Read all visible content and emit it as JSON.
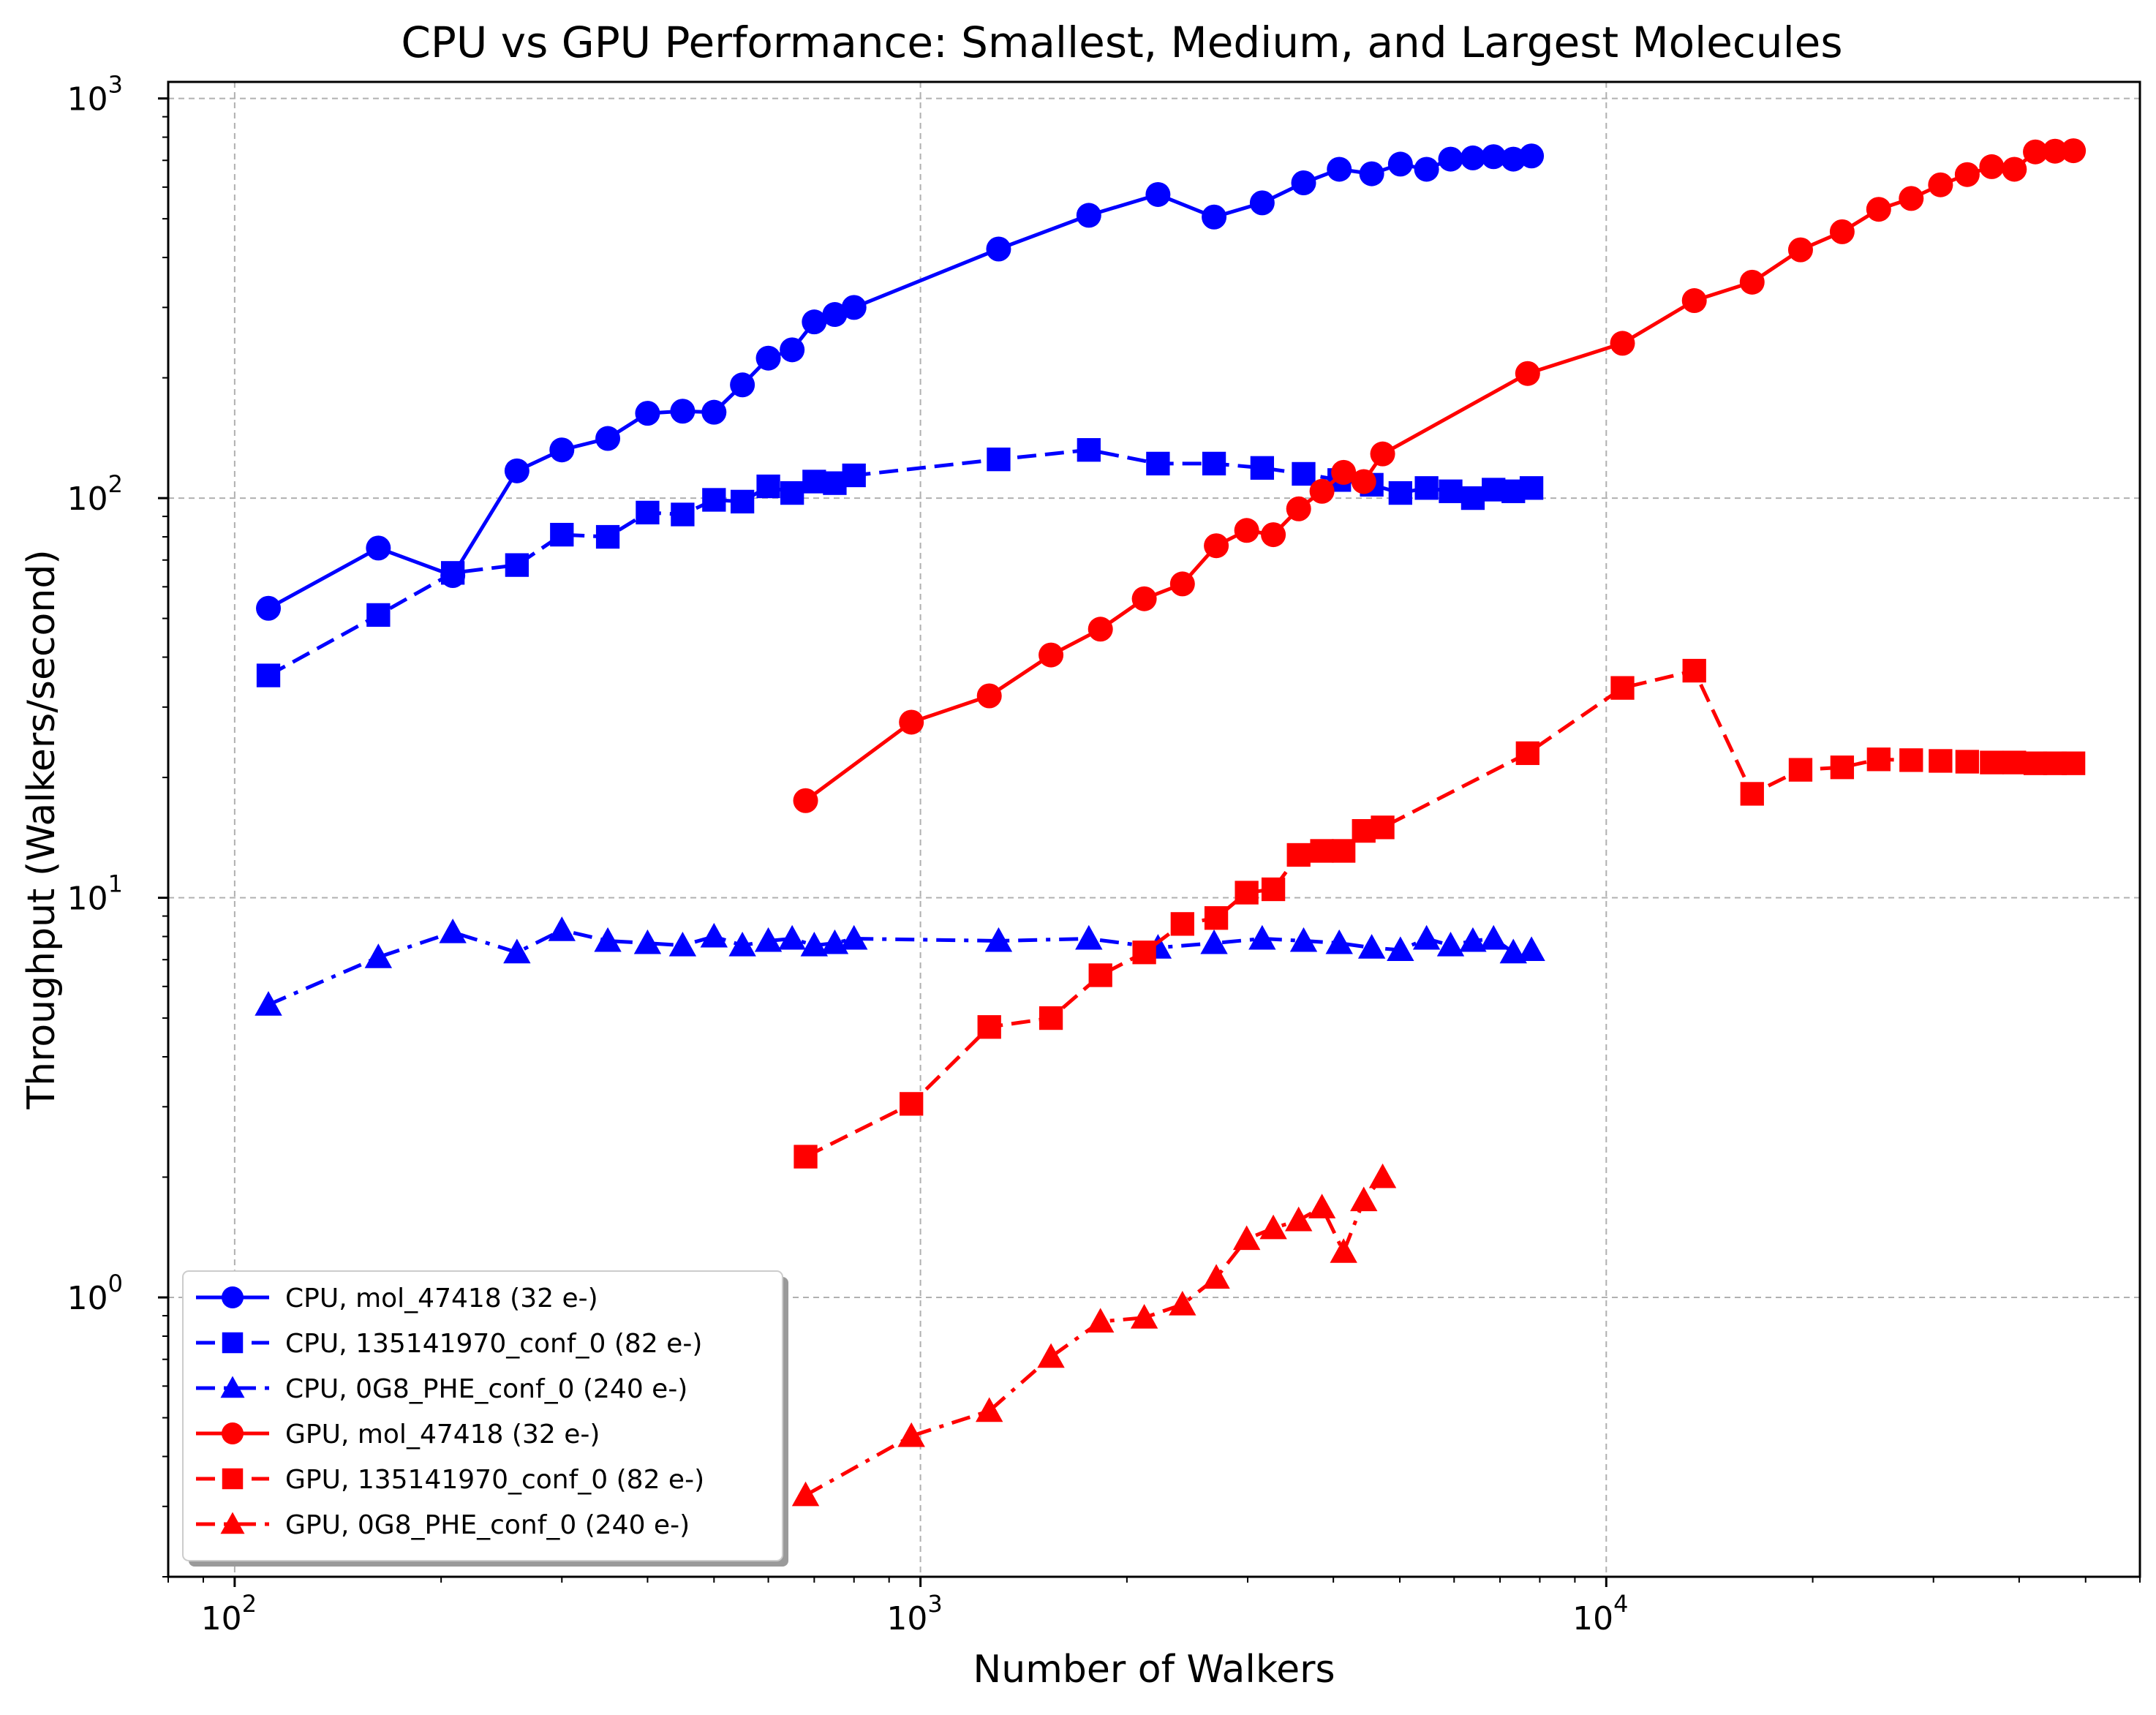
{
  "chart_data": {
    "type": "line",
    "title": "CPU vs GPU Performance: Smallest, Medium, and Largest Molecules",
    "xlabel": "Number of Walkers",
    "ylabel": "Throughput (Walkers/second)",
    "xscale": "log",
    "yscale": "log",
    "xlim": [
      80,
      60000
    ],
    "ylim": [
      0.2,
      1100
    ],
    "grid": true,
    "legend_position": "lower-left",
    "x_tick_labels": [
      {
        "value": 100,
        "base": "10",
        "exp": "2"
      },
      {
        "value": 1000,
        "base": "10",
        "exp": "3"
      },
      {
        "value": 10000,
        "base": "10",
        "exp": "4"
      }
    ],
    "y_tick_labels": [
      {
        "value": 1,
        "base": "10",
        "exp": "0"
      },
      {
        "value": 10,
        "base": "10",
        "exp": "1"
      },
      {
        "value": 100,
        "base": "10",
        "exp": "2"
      },
      {
        "value": 1000,
        "base": "10",
        "exp": "3"
      }
    ],
    "series": [
      {
        "name": "CPU, mol_47418 (32 e-)",
        "color": "#0000ff",
        "marker": "circle",
        "linestyle": "solid",
        "x": [
          112,
          162,
          208,
          258,
          300,
          350,
          400,
          450,
          500,
          550,
          600,
          650,
          700,
          750,
          800,
          1300,
          1760,
          2220,
          2680,
          3150,
          3620,
          4080,
          4550,
          5010,
          5470,
          5930,
          6390,
          6850,
          7320,
          7780
        ],
        "y": [
          53,
          75,
          64,
          117,
          132,
          141,
          163,
          165,
          164,
          192,
          224,
          235,
          276,
          288,
          300,
          420,
          510,
          575,
          505,
          548,
          615,
          665,
          648,
          685,
          665,
          705,
          710,
          715,
          705,
          718
        ]
      },
      {
        "name": "CPU, 135141970_conf_0 (82 e-)",
        "color": "#0000ff",
        "marker": "square",
        "linestyle": "dashed",
        "x": [
          112,
          162,
          208,
          258,
          300,
          350,
          400,
          450,
          500,
          550,
          600,
          650,
          700,
          750,
          800,
          1300,
          1760,
          2220,
          2680,
          3150,
          3620,
          4080,
          4550,
          5010,
          5470,
          5930,
          6390,
          6850,
          7320,
          7780
        ],
        "y": [
          36,
          51,
          65,
          68,
          81,
          80,
          92,
          91,
          99,
          98,
          107,
          103,
          110,
          109,
          114,
          125,
          132,
          122,
          122,
          119,
          115,
          111,
          108,
          103,
          106,
          104,
          100,
          105,
          104,
          106
        ]
      },
      {
        "name": "CPU, 0G8_PHE_conf_0 (240 e-)",
        "color": "#0000ff",
        "marker": "triangle",
        "linestyle": "dashdot",
        "x": [
          112,
          162,
          208,
          258,
          300,
          350,
          400,
          450,
          500,
          550,
          600,
          650,
          700,
          750,
          800,
          1300,
          1760,
          2220,
          2680,
          3150,
          3620,
          4080,
          4550,
          5010,
          5470,
          5930,
          6390,
          6850,
          7320,
          7780
        ],
        "y": [
          5.4,
          7.1,
          8.2,
          7.3,
          8.3,
          7.8,
          7.7,
          7.6,
          8.0,
          7.6,
          7.8,
          7.9,
          7.6,
          7.7,
          7.9,
          7.8,
          7.9,
          7.5,
          7.7,
          7.9,
          7.8,
          7.7,
          7.5,
          7.4,
          7.9,
          7.6,
          7.8,
          7.9,
          7.3,
          7.4
        ]
      },
      {
        "name": "GPU, mol_47418 (32 e-)",
        "color": "#ff0000",
        "marker": "circle",
        "linestyle": "solid",
        "x": [
          680,
          970,
          1260,
          1550,
          1830,
          2120,
          2410,
          2700,
          2990,
          3270,
          3560,
          3850,
          4140,
          4430,
          4720,
          7680,
          10560,
          13440,
          16320,
          19200,
          22080,
          24960,
          27840,
          30720,
          33600,
          36480,
          39360,
          42240,
          45120,
          48000
        ],
        "y": [
          17.5,
          27.5,
          32,
          40.5,
          47,
          56,
          61,
          76,
          83,
          81,
          94,
          104,
          116,
          110,
          129,
          205,
          244,
          312,
          347,
          418,
          464,
          528,
          562,
          608,
          645,
          675,
          665,
          735,
          738,
          740
        ]
      },
      {
        "name": "GPU, 135141970_conf_0 (82 e-)",
        "color": "#ff0000",
        "marker": "square",
        "linestyle": "dashed",
        "x": [
          680,
          970,
          1260,
          1550,
          1830,
          2120,
          2410,
          2700,
          2990,
          3270,
          3560,
          3850,
          4140,
          4430,
          4720,
          7680,
          10560,
          13440,
          16320,
          19200,
          22080,
          24960,
          27840,
          30720,
          33600,
          36480,
          39360,
          42240,
          45120,
          48000
        ],
        "y": [
          2.25,
          3.05,
          4.75,
          5.0,
          6.4,
          7.3,
          8.6,
          8.9,
          10.3,
          10.5,
          12.8,
          13.1,
          13.1,
          14.7,
          15.0,
          23.0,
          33.5,
          37.0,
          18.2,
          20.9,
          21.2,
          22.2,
          22.1,
          22.0,
          21.9,
          21.8,
          21.8,
          21.7,
          21.7,
          21.7
        ]
      },
      {
        "name": "GPU, 0G8_PHE_conf_0 (240 e-)",
        "color": "#ff0000",
        "marker": "triangle",
        "linestyle": "dashdot",
        "x": [
          680,
          970,
          1260,
          1550,
          1830,
          2120,
          2410,
          2700,
          2990,
          3270,
          3560,
          3850,
          4140,
          4430,
          4720
        ],
        "y": [
          0.32,
          0.45,
          0.52,
          0.71,
          0.87,
          0.89,
          0.96,
          1.12,
          1.4,
          1.49,
          1.56,
          1.68,
          1.3,
          1.75,
          2.0
        ]
      }
    ]
  }
}
